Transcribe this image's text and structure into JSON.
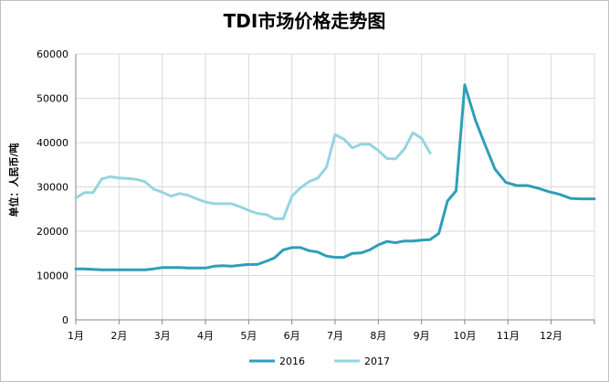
{
  "chart_data": {
    "type": "line",
    "title": "TDI市场价格走势图",
    "xlabel": "",
    "ylabel": "单位：人民币/吨",
    "ylim": [
      0,
      60000
    ],
    "yticks": [
      "0",
      "10000",
      "20000",
      "30000",
      "40000",
      "50000",
      "60000"
    ],
    "x_tick_labels": [
      "1月",
      "2月",
      "3月",
      "4月",
      "5月",
      "6月",
      "7月",
      "8月",
      "9月",
      "10月",
      "11月",
      "12月"
    ],
    "x_range": [
      1,
      13
    ],
    "grid": true,
    "legend_position": "bottom",
    "series": [
      {
        "name": "2016",
        "color": "#2e9eb8",
        "x": [
          1.0,
          1.2,
          1.4,
          1.6,
          1.8,
          2.0,
          2.2,
          2.4,
          2.6,
          2.8,
          3.0,
          3.2,
          3.4,
          3.6,
          3.8,
          4.0,
          4.2,
          4.4,
          4.6,
          4.8,
          5.0,
          5.2,
          5.4,
          5.6,
          5.8,
          6.0,
          6.2,
          6.4,
          6.6,
          6.8,
          7.0,
          7.2,
          7.4,
          7.6,
          7.8,
          8.0,
          8.2,
          8.4,
          8.6,
          8.8,
          9.0,
          9.2,
          9.4,
          9.6,
          9.8,
          10.0,
          10.25,
          10.45,
          10.7,
          10.95,
          11.2,
          11.45,
          11.7,
          11.95,
          12.2,
          12.45,
          12.7,
          12.95,
          13.0
        ],
        "values": [
          11500,
          11500,
          11400,
          11300,
          11300,
          11300,
          11300,
          11300,
          11300,
          11500,
          11800,
          11800,
          11800,
          11700,
          11700,
          11700,
          12100,
          12200,
          12100,
          12300,
          12500,
          12500,
          13200,
          14000,
          15800,
          16300,
          16300,
          15600,
          15300,
          14400,
          14100,
          14100,
          15000,
          15100,
          15800,
          16900,
          17700,
          17400,
          17800,
          17800,
          18000,
          18100,
          19500,
          26800,
          29100,
          53000,
          45000,
          40000,
          34000,
          31000,
          30300,
          30300,
          29700,
          28900,
          28300,
          27400,
          27300,
          27300,
          27300
        ]
      },
      {
        "name": "2017",
        "color": "#95d5df",
        "x": [
          1.0,
          1.2,
          1.4,
          1.6,
          1.8,
          2.0,
          2.2,
          2.4,
          2.6,
          2.8,
          3.0,
          3.2,
          3.4,
          3.6,
          3.8,
          4.0,
          4.2,
          4.4,
          4.6,
          4.8,
          5.0,
          5.2,
          5.4,
          5.6,
          5.8,
          6.0,
          6.2,
          6.4,
          6.6,
          6.8,
          7.0,
          7.2,
          7.4,
          7.6,
          7.8,
          8.0,
          8.2,
          8.4,
          8.6,
          8.8,
          9.0,
          9.2,
          9.4,
          9.6,
          9.8,
          10.0,
          10.2,
          10.4
        ],
        "values": [
          27500,
          28700,
          28700,
          31800,
          32300,
          32000,
          31900,
          31700,
          31200,
          29500,
          28800,
          27900,
          28500,
          28100,
          27300,
          26600,
          26200,
          26200,
          26200,
          25500,
          24700,
          24000,
          23800,
          22800,
          22800,
          27900,
          29800,
          31200,
          32000,
          34400,
          41800,
          40800,
          38800,
          39600,
          39600,
          38200,
          36400,
          36300,
          38500,
          42200,
          41000,
          37600,
          null,
          null,
          null,
          null,
          null,
          null
        ]
      }
    ]
  }
}
